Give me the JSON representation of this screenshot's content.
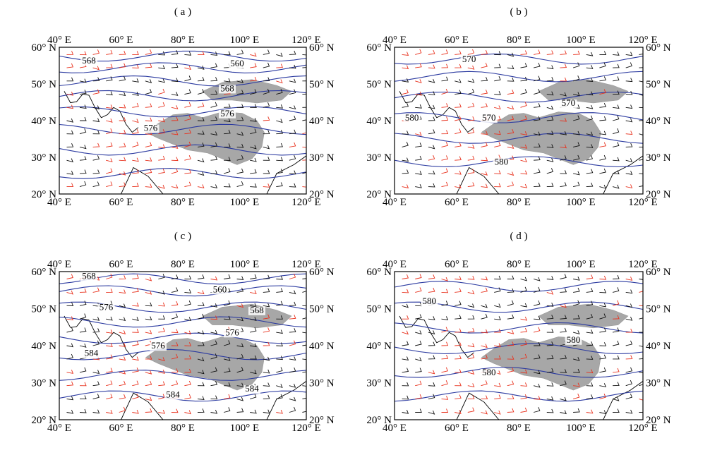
{
  "panels": [
    {
      "label": "( a )",
      "xticks": [
        "40° E",
        "60° E",
        "80° E",
        "100° E",
        "120° E"
      ],
      "yticks": [
        "60° N",
        "50° N",
        "40° N",
        "30° N",
        "20° N"
      ],
      "contour_labels": [
        "568",
        "560",
        "568",
        "576",
        "576"
      ]
    },
    {
      "label": "( b )",
      "xticks": [
        "40° E",
        "60° E",
        "80° E",
        "100° E",
        "120° E"
      ],
      "yticks": [
        "60° N",
        "50° N",
        "40° N",
        "30° N",
        "20° N"
      ],
      "contour_labels": [
        "570",
        "570",
        "580",
        "570",
        "580"
      ]
    },
    {
      "label": "( c )",
      "xticks": [
        "40° E",
        "60° E",
        "80° E",
        "100° E",
        "120° E"
      ],
      "yticks": [
        "60° N",
        "50° N",
        "40° N",
        "30° N",
        "20° N"
      ],
      "contour_labels": [
        "568",
        "576",
        "560",
        "568",
        "576",
        "576",
        "584",
        "584",
        "584"
      ]
    },
    {
      "label": "( d )",
      "xticks": [
        "40° E",
        "60° E",
        "80° E",
        "100° E",
        "120° E"
      ],
      "yticks": [
        "60° N",
        "50° N",
        "40° N",
        "30° N",
        "20° N"
      ],
      "contour_labels": [
        "580",
        "580",
        "580"
      ]
    }
  ],
  "colors": {
    "contour": "#2b3aa0",
    "plateau": "#a7a7a7",
    "barb_normal": "#111111",
    "barb_highlight": "#e8321e"
  }
}
